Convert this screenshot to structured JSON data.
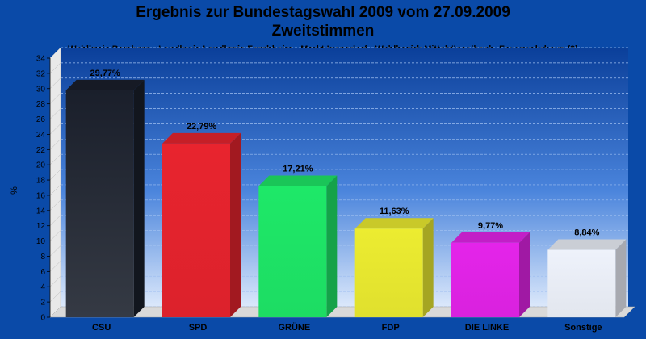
{
  "header": {
    "title_line1": "Ergebnis zur Bundestagswahl 2009 vom 27.09.2009",
    "title_line2": "Zweitstimmen",
    "subtitle": "Wahlkreis Bamberg - Landkreis Landkreis Forchheim - Markt Igensdorf - Wahlbezirk Mittelrüsselbach, Feuerwehrhaus (9)"
  },
  "chart_data": {
    "type": "bar",
    "title": "Ergebnis zur Bundestagswahl 2009 vom 27.09.2009",
    "subtitle": "Zweitstimmen",
    "ylabel": "%",
    "ylim": [
      0,
      34
    ],
    "yticks": [
      0,
      2,
      4,
      6,
      8,
      10,
      12,
      14,
      16,
      18,
      20,
      22,
      24,
      26,
      28,
      30,
      32,
      34
    ],
    "grid": true,
    "categories": [
      "CSU",
      "SPD",
      "GRÜNE",
      "FDP",
      "DIE LINKE",
      "Sonstige"
    ],
    "values": [
      29.77,
      22.79,
      17.21,
      11.63,
      9.77,
      8.84
    ],
    "value_labels": [
      "29,77%",
      "22,79%",
      "17,21%",
      "11,63%",
      "9,77%",
      "8,84%"
    ],
    "colors": [
      "#1a1f2b",
      "#e8242e",
      "#1ee868",
      "#ecec30",
      "#e424ea",
      "#eef2fb"
    ]
  }
}
